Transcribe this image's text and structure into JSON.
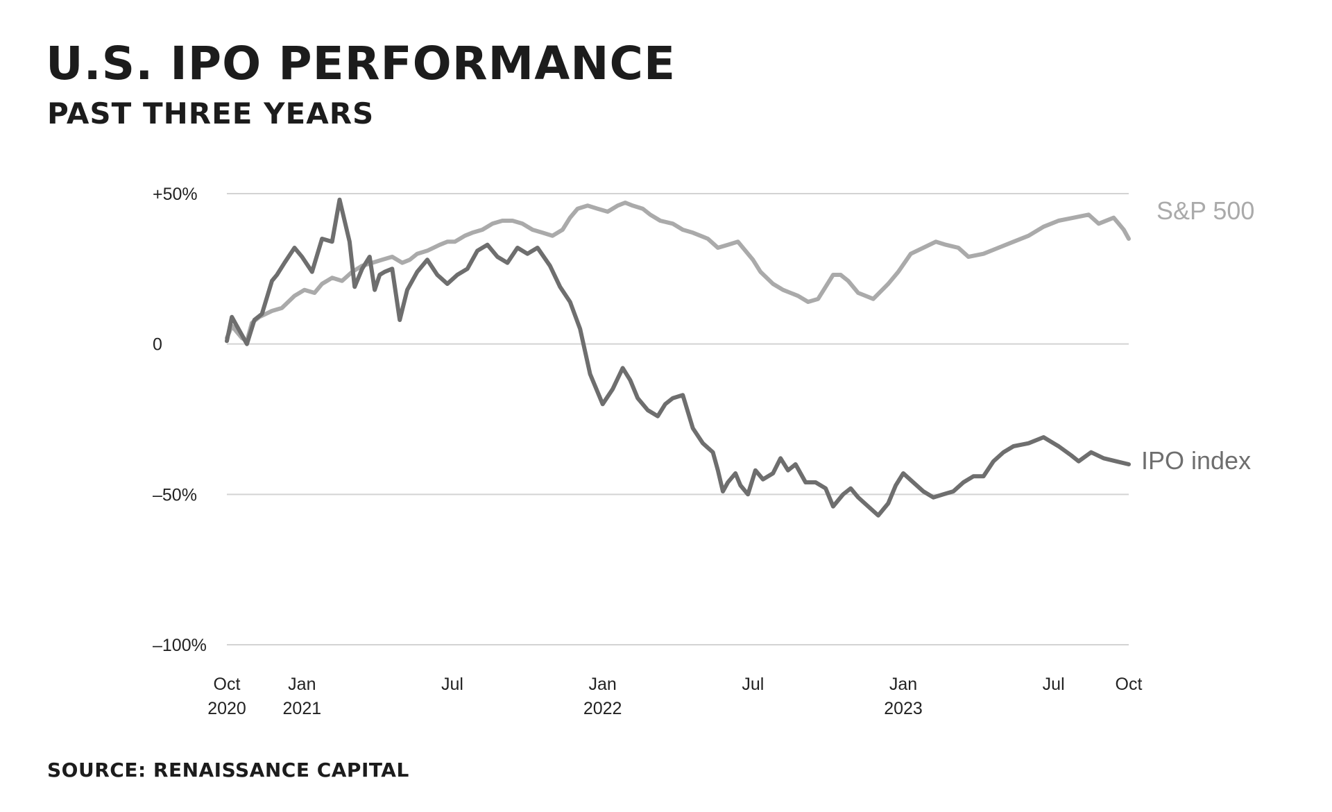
{
  "header": {
    "title": "U.S. IPO Performance",
    "subtitle": "Past three years"
  },
  "footer": {
    "source": "Source: Renaissance Capital"
  },
  "chart_data": {
    "type": "line",
    "x_unit": "months since Oct 2020",
    "xlim": [
      0,
      36
    ],
    "ylim": [
      -100,
      50
    ],
    "yticks": [
      {
        "value": 50,
        "label": "+50%"
      },
      {
        "value": 0,
        "label": "0"
      },
      {
        "value": -50,
        "label": "–50%"
      },
      {
        "value": -100,
        "label": "–100%"
      }
    ],
    "xticks": [
      {
        "value": 0,
        "line1": "Oct",
        "line2": "2020"
      },
      {
        "value": 3,
        "line1": "Jan",
        "line2": "2021"
      },
      {
        "value": 9,
        "line1": "Jul",
        "line2": ""
      },
      {
        "value": 15,
        "line1": "Jan",
        "line2": "2022"
      },
      {
        "value": 21,
        "line1": "Jul",
        "line2": ""
      },
      {
        "value": 27,
        "line1": "Jan",
        "line2": "2023"
      },
      {
        "value": 33,
        "line1": "Jul",
        "line2": ""
      },
      {
        "value": 36,
        "line1": "Oct",
        "line2": ""
      }
    ],
    "grid": true,
    "series": [
      {
        "name": "S&P 500",
        "color": "#aaaaaa",
        "x": [
          0,
          0.2,
          0.4,
          0.6,
          0.8,
          1.0,
          1.3,
          1.8,
          2.2,
          2.7,
          3.1,
          3.5,
          3.8,
          4.2,
          4.6,
          5.0,
          5.4,
          5.8,
          6.2,
          6.6,
          7.0,
          7.3,
          7.6,
          8.0,
          8.5,
          8.8,
          9.1,
          9.5,
          9.8,
          10.2,
          10.6,
          11.0,
          11.4,
          11.8,
          12.2,
          12.6,
          13.0,
          13.4,
          13.7,
          14.0,
          14.4,
          14.8,
          15.2,
          15.6,
          15.9,
          16.2,
          16.6,
          16.9,
          17.3,
          17.8,
          18.2,
          18.6,
          19.2,
          19.6,
          20.0,
          20.4,
          21.0,
          21.3,
          21.8,
          22.2,
          22.5,
          22.8,
          23.2,
          23.6,
          23.9,
          24.2,
          24.5,
          24.8,
          25.2,
          25.8,
          26.4,
          26.8,
          27.3,
          27.8,
          28.3,
          28.7,
          29.2,
          29.6,
          30.2,
          30.8,
          31.4,
          32.0,
          32.6,
          33.2,
          33.8,
          34.4,
          34.8,
          35.4,
          35.6,
          35.8,
          36.0
        ],
        "y": [
          2,
          6,
          4,
          2,
          1,
          7,
          9,
          11,
          12,
          16,
          18,
          17,
          20,
          22,
          21,
          24,
          26,
          27,
          28,
          29,
          27,
          28,
          30,
          31,
          33,
          34,
          34,
          36,
          37,
          38,
          40,
          41,
          41,
          40,
          38,
          37,
          36,
          38,
          42,
          45,
          46,
          45,
          44,
          46,
          47,
          46,
          45,
          43,
          41,
          40,
          38,
          37,
          35,
          32,
          33,
          34,
          28,
          24,
          20,
          18,
          17,
          16,
          14,
          15,
          19,
          23,
          23,
          21,
          17,
          15,
          20,
          24,
          30,
          32,
          34,
          33,
          32,
          29,
          30,
          32,
          34,
          36,
          39,
          41,
          42,
          43,
          40,
          42,
          40,
          38,
          35
        ]
      },
      {
        "name": "IPO index",
        "color": "#6e6e6e",
        "x": [
          0,
          0.2,
          0.4,
          0.6,
          0.8,
          1.1,
          1.4,
          1.8,
          2.0,
          2.3,
          2.7,
          3.0,
          3.4,
          3.8,
          4.2,
          4.5,
          4.9,
          5.1,
          5.4,
          5.7,
          5.9,
          6.1,
          6.3,
          6.6,
          6.9,
          7.2,
          7.6,
          8.0,
          8.4,
          8.8,
          9.2,
          9.6,
          10.0,
          10.4,
          10.8,
          11.2,
          11.6,
          12.0,
          12.4,
          12.9,
          13.3,
          13.7,
          14.1,
          14.5,
          15.0,
          15.4,
          15.8,
          16.1,
          16.4,
          16.8,
          17.2,
          17.5,
          17.8,
          18.2,
          18.6,
          19.0,
          19.4,
          19.6,
          19.8,
          20.0,
          20.3,
          20.5,
          20.8,
          21.1,
          21.4,
          21.8,
          22.1,
          22.4,
          22.7,
          23.1,
          23.5,
          23.9,
          24.2,
          24.6,
          24.9,
          25.2,
          25.6,
          26.0,
          26.4,
          26.7,
          27.0,
          27.4,
          27.8,
          28.2,
          28.6,
          29.0,
          29.4,
          29.8,
          30.2,
          30.6,
          31.0,
          31.4,
          32.0,
          32.6,
          33.2,
          33.7,
          34.0,
          34.5,
          35.0,
          35.5,
          36.0
        ],
        "y": [
          1,
          9,
          6,
          3,
          0,
          8,
          10,
          21,
          23,
          27,
          32,
          29,
          24,
          35,
          34,
          48,
          34,
          19,
          25,
          29,
          18,
          23,
          24,
          25,
          8,
          18,
          24,
          28,
          23,
          20,
          23,
          25,
          31,
          33,
          29,
          27,
          32,
          30,
          32,
          26,
          19,
          14,
          5,
          -10,
          -20,
          -15,
          -8,
          -12,
          -18,
          -22,
          -24,
          -20,
          -18,
          -17,
          -28,
          -33,
          -36,
          -42,
          -49,
          -46,
          -43,
          -47,
          -50,
          -42,
          -45,
          -43,
          -38,
          -42,
          -40,
          -46,
          -46,
          -48,
          -54,
          -50,
          -48,
          -51,
          -54,
          -57,
          -53,
          -47,
          -43,
          -46,
          -49,
          -51,
          -50,
          -49,
          -46,
          -44,
          -44,
          -39,
          -36,
          -34,
          -33,
          -31,
          -34,
          -37,
          -39,
          -36,
          -38,
          -39,
          -40
        ]
      }
    ]
  }
}
